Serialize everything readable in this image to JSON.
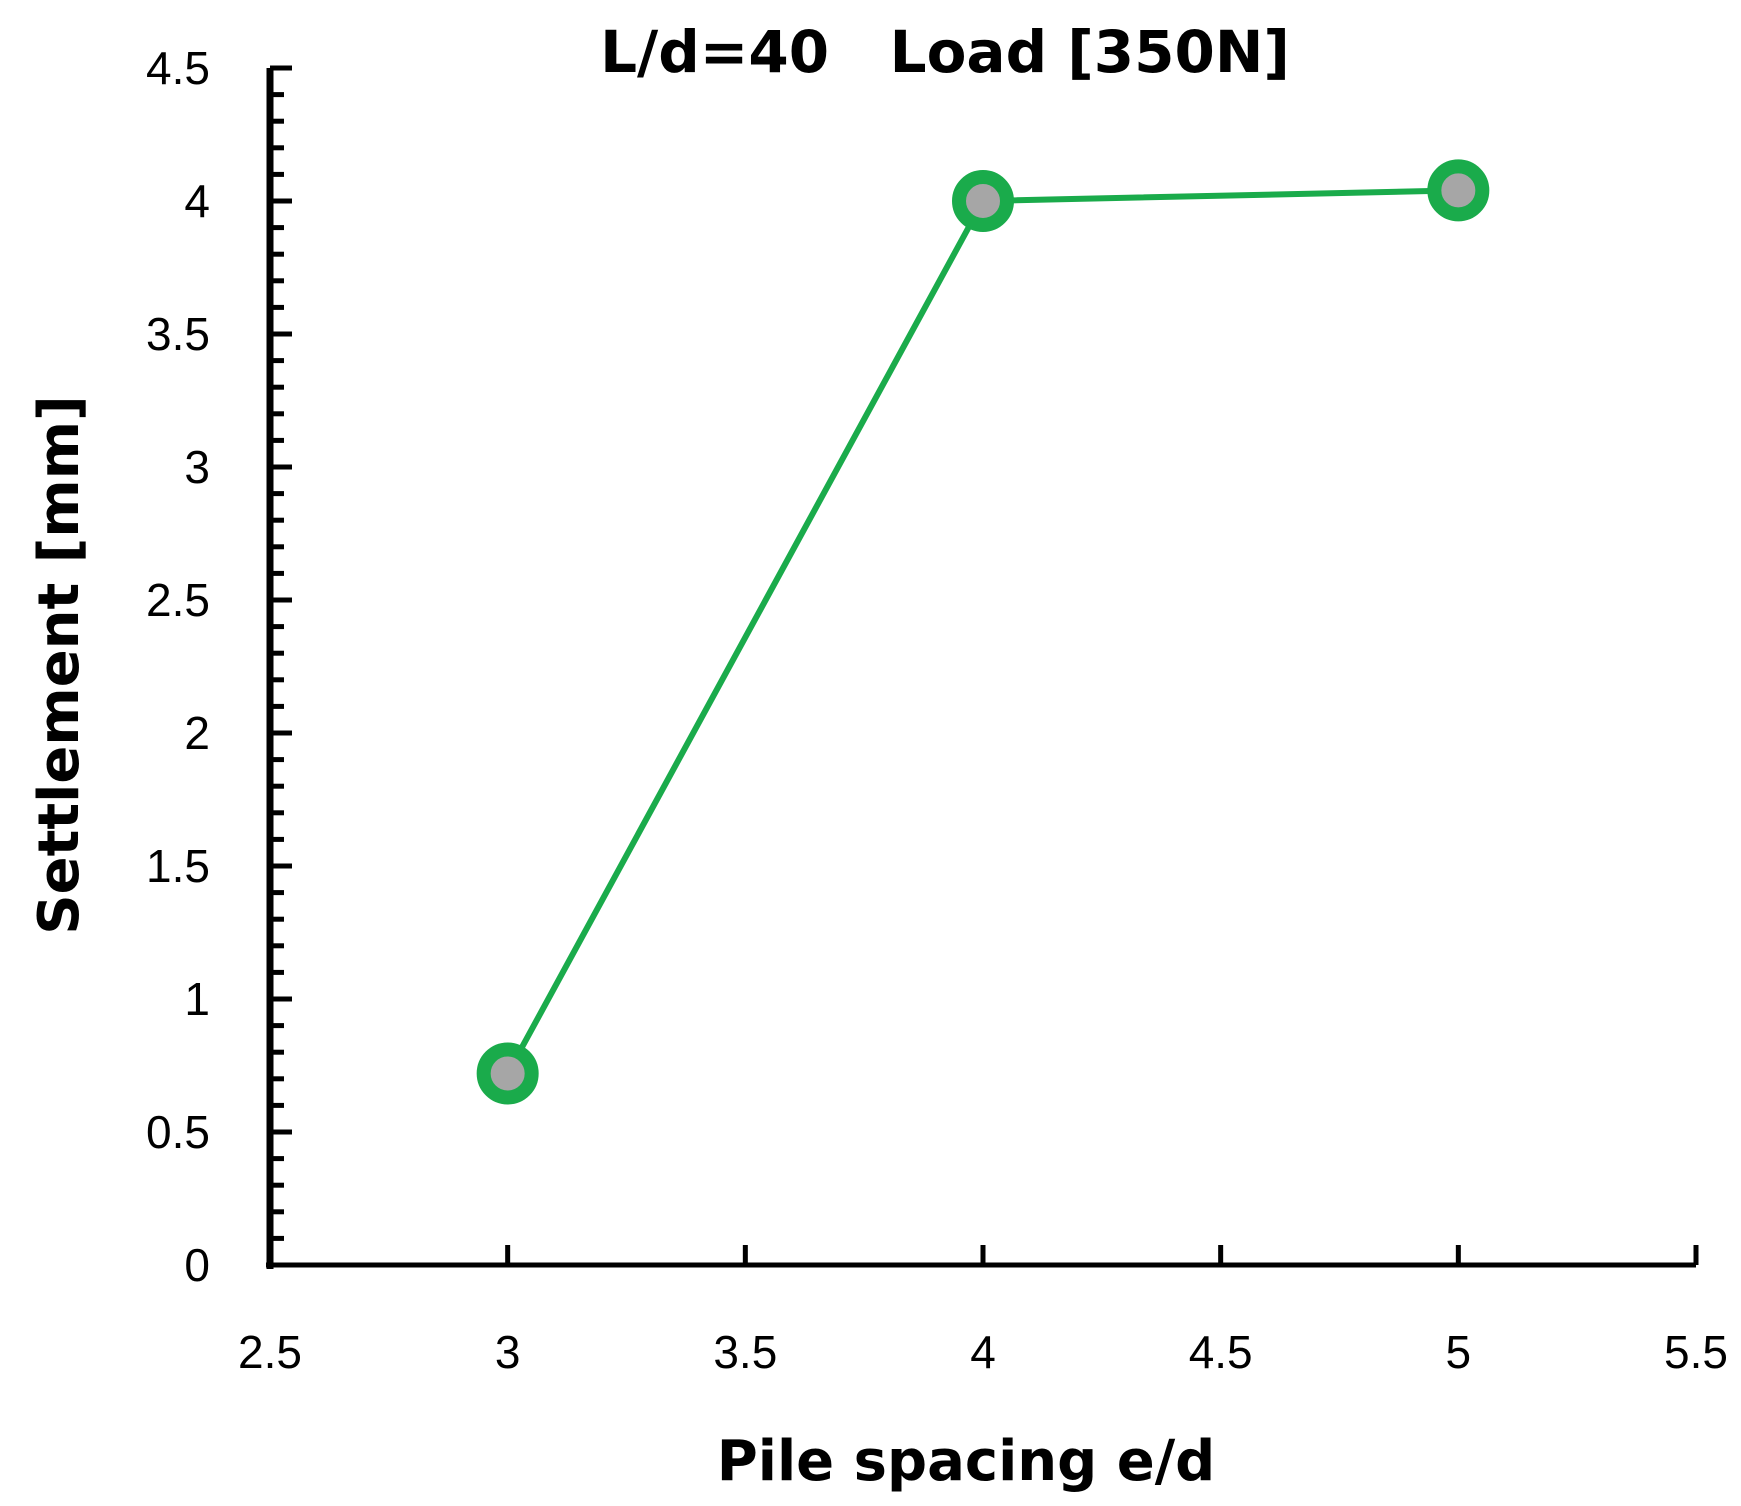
{
  "chart_data": {
    "type": "line",
    "title": "L/d=40   Load [350N]",
    "xlabel": "Pile spacing e/d",
    "ylabel": "Settlement [mm]",
    "xlim": [
      2.5,
      5.5
    ],
    "ylim": [
      0,
      4.5
    ],
    "x_ticks": [
      "2.5",
      "3",
      "3.5",
      "4",
      "4.5",
      "5",
      "5.5"
    ],
    "y_ticks": [
      "0",
      "0.5",
      "1",
      "1.5",
      "2",
      "2.5",
      "3",
      "3.5",
      "4",
      "4.5"
    ],
    "grid": false,
    "series": [
      {
        "x": [
          3,
          4,
          5
        ],
        "y": [
          0.72,
          4.0,
          4.04
        ],
        "color": "#1aab4b",
        "marker_fill": "#a6a6a6"
      }
    ]
  }
}
